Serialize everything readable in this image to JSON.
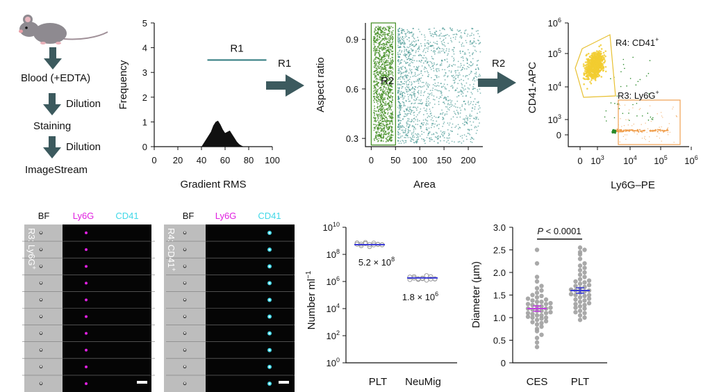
{
  "workflow": {
    "steps": [
      "Blood (+EDTA)",
      "Staining",
      "ImageStream"
    ],
    "dilution_labels": [
      "Dilution",
      "Dilution"
    ],
    "arrow_labels": [
      "R1",
      "R2"
    ]
  },
  "panels": {
    "histogram": {
      "type": "area",
      "xlabel": "Gradient RMS",
      "ylabel": "Frequency",
      "xticks": [
        "0",
        "20",
        "40",
        "60",
        "80",
        "100"
      ],
      "yticks": [
        "0",
        "1",
        "2",
        "3",
        "4",
        "5"
      ],
      "xlim": [
        0,
        100
      ],
      "ylim": [
        0,
        5
      ],
      "gate_label": "R1",
      "gate_range": [
        45,
        95
      ],
      "gate_level": 3.5,
      "x": [
        40,
        44,
        48,
        50,
        52,
        54,
        56,
        58,
        60,
        62,
        64,
        66,
        68,
        70,
        72,
        74,
        76
      ],
      "y": [
        0.0,
        0.3,
        0.6,
        0.85,
        1.0,
        1.05,
        0.9,
        0.7,
        0.55,
        0.6,
        0.65,
        0.5,
        0.35,
        0.2,
        0.1,
        0.04,
        0.0
      ]
    },
    "scatter_area": {
      "type": "scatter",
      "xlabel": "Area",
      "ylabel": "Aspect ratio",
      "xticks": [
        "0",
        "50",
        "100",
        "150",
        "200"
      ],
      "yticks": [
        "0.3",
        "0.6",
        "0.9"
      ],
      "xlim": [
        -12,
        230
      ],
      "ylim": [
        0.25,
        1.0
      ],
      "gate_label": "R2",
      "gate_x": [
        0,
        50
      ],
      "gate_y": [
        0.26,
        1.0
      ],
      "colors": {
        "gated": "#3d8a1c",
        "other": "#2e8b86"
      }
    },
    "flow": {
      "type": "scatter",
      "xlabel": "Ly6G–PE",
      "ylabel": "CD41-APC",
      "xticks": [
        "0",
        "10",
        "10",
        "10",
        "10"
      ],
      "xtick_exp": [
        "",
        "3",
        "4",
        "5",
        "6"
      ],
      "yticks": [
        "0",
        "10",
        "10",
        "10",
        "10"
      ],
      "ytick_exp": [
        "",
        "3",
        "4",
        "5",
        "6"
      ],
      "gate_r4": "R4: CD41",
      "gate_r3": "R3: Ly6G",
      "plus": "+",
      "colors": {
        "r4": "#f2cc30",
        "r3": "#f0a050",
        "neg": "#2a8a2a"
      }
    },
    "imagestream_ly6g": {
      "side_label": "R3: Ly6G",
      "plus": "+",
      "channels": [
        "BF",
        "Ly6G",
        "CD41"
      ],
      "channel_colors": [
        "#111111",
        "#e020e0",
        "#40d8e8"
      ],
      "rows": 10
    },
    "imagestream_cd41": {
      "side_label": "R4: CD41",
      "plus": "+",
      "channels": [
        "BF",
        "Ly6G",
        "CD41"
      ],
      "channel_colors": [
        "#111111",
        "#e020e0",
        "#40d8e8"
      ],
      "rows": 10
    },
    "counts": {
      "type": "scatter",
      "ylabel": "Number ml",
      "ylabel_exp": "−1",
      "categories": [
        "PLT",
        "NeuMig"
      ],
      "yticks": [
        "10",
        "10",
        "10",
        "10",
        "10",
        "10"
      ],
      "ytick_exp": [
        "0",
        "2",
        "4",
        "6",
        "8",
        "10"
      ],
      "ylim_log10": [
        0,
        10
      ],
      "means_log10": [
        8.72,
        6.26
      ],
      "mean_labels": [
        "5.2 × 10",
        "1.8 × 10"
      ],
      "mean_exp": [
        "8",
        "6"
      ],
      "point_color": "#999999",
      "mean_color": "#3a3ad8"
    },
    "diameter": {
      "type": "scatter",
      "ylabel": "Diameter (µm)",
      "categories": [
        "CES",
        "PLT"
      ],
      "yticks": [
        "0",
        "0.5",
        "1.0",
        "1.5",
        "2.0",
        "2.5",
        "3.0"
      ],
      "ylim": [
        0,
        3.0
      ],
      "means": [
        1.2,
        1.6
      ],
      "sig_p": "P",
      "sig_rest": " < 0.0001",
      "colors": {
        "points": "#a0a0a0",
        "ces_mean": "#c040e0",
        "plt_mean": "#3a3ad8"
      },
      "series": [
        {
          "values": [
            0.35,
            0.45,
            0.55,
            0.62,
            0.7,
            0.75,
            0.8,
            0.85,
            0.88,
            0.9,
            0.92,
            0.95,
            0.98,
            1.0,
            1.0,
            1.02,
            1.05,
            1.05,
            1.08,
            1.1,
            1.1,
            1.12,
            1.15,
            1.15,
            1.18,
            1.2,
            1.2,
            1.22,
            1.25,
            1.25,
            1.28,
            1.3,
            1.3,
            1.32,
            1.35,
            1.35,
            1.38,
            1.4,
            1.42,
            1.45,
            1.48,
            1.5,
            1.55,
            1.6,
            1.65,
            1.7,
            1.8,
            1.9,
            2.2,
            2.5
          ]
        },
        {
          "values": [
            0.95,
            1.0,
            1.05,
            1.1,
            1.12,
            1.15,
            1.2,
            1.22,
            1.25,
            1.28,
            1.3,
            1.32,
            1.35,
            1.38,
            1.4,
            1.42,
            1.45,
            1.48,
            1.5,
            1.5,
            1.52,
            1.55,
            1.58,
            1.6,
            1.6,
            1.62,
            1.65,
            1.68,
            1.7,
            1.72,
            1.75,
            1.78,
            1.8,
            1.82,
            1.85,
            1.9,
            1.95,
            2.0,
            2.05,
            2.1,
            2.15,
            2.2,
            2.3,
            2.4,
            2.45,
            2.5,
            2.55
          ]
        }
      ]
    }
  }
}
